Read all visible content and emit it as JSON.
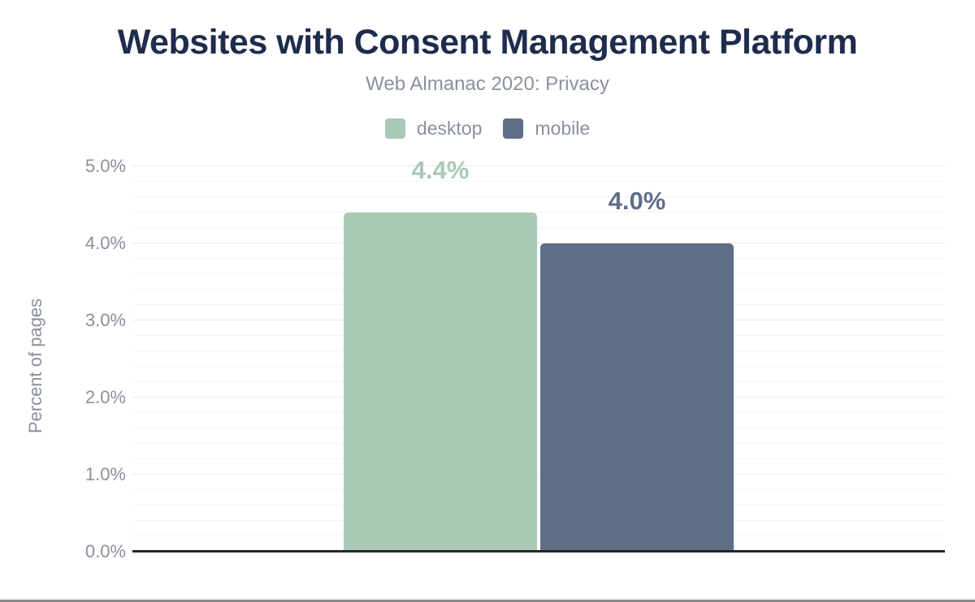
{
  "chart_data": {
    "type": "bar",
    "title": "Websites with Consent Management Platform",
    "subtitle": "Web Almanac 2020: Privacy",
    "categories": [
      ""
    ],
    "series": [
      {
        "name": "desktop",
        "values": [
          4.4
        ],
        "data_label": "4.4%",
        "color": "#a8c9b6"
      },
      {
        "name": "mobile",
        "values": [
          4.0
        ],
        "data_label": "4.0%",
        "color": "#5f6e88"
      }
    ],
    "xlabel": "",
    "ylabel": "Percent of pages",
    "ylim": [
      0,
      5
    ],
    "ytick_labels": [
      "0.0%",
      "1.0%",
      "2.0%",
      "3.0%",
      "4.0%",
      "5.0%"
    ],
    "ytick_step_major": 1.0,
    "ytick_step_minor": 0.2,
    "grid": true,
    "legend_position": "top"
  },
  "colors": {
    "title": "#1e2c4d",
    "subtitle_text": "#8a919c",
    "tick_text": "#8a8f99",
    "axis_line": "#22262c",
    "gridline_major": "#e9e9e9",
    "gridline_minor": "#f4f4f4",
    "bottom_border": "#8c8c8c"
  }
}
